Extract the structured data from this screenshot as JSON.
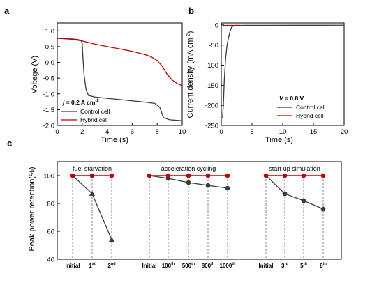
{
  "colors": {
    "control": "#3a3a3a",
    "hybrid": "#c00000",
    "axis": "#000000",
    "guide": "#666666"
  },
  "chart_data": [
    {
      "panel": "a",
      "type": "line",
      "xlabel": "Time (s)",
      "ylabel": "Voltege (V)",
      "xlim": [
        0,
        10
      ],
      "ylim": [
        -2.0,
        1.25
      ],
      "xticks": [
        0,
        2,
        4,
        6,
        8,
        10
      ],
      "yticks": [
        1.0,
        0.5,
        0.0,
        -0.5,
        -1.0,
        -1.5,
        -2.0
      ],
      "annotation": {
        "prefix": "j",
        "text": " = 0.2 A cm",
        "sup": "-2"
      },
      "series": [
        {
          "name": "Control cell",
          "color_key": "control",
          "x": [
            0,
            1.0,
            1.6,
            1.9,
            2.0,
            2.05,
            2.15,
            2.3,
            2.5,
            3.0,
            4.0,
            5.0,
            6.0,
            7.0,
            7.8,
            8.2,
            8.5,
            9.0,
            10.0
          ],
          "y": [
            0.76,
            0.75,
            0.73,
            0.7,
            0.6,
            0.2,
            -0.4,
            -0.85,
            -1.05,
            -1.1,
            -1.14,
            -1.18,
            -1.22,
            -1.26,
            -1.3,
            -1.42,
            -1.75,
            -1.82,
            -1.85
          ]
        },
        {
          "name": "Hybrid cell",
          "color_key": "hybrid",
          "x": [
            0,
            1.0,
            2.0,
            3.0,
            4.0,
            5.0,
            6.0,
            7.0,
            7.5,
            8.0,
            8.4,
            8.8,
            9.2,
            9.6,
            10.0
          ],
          "y": [
            0.76,
            0.74,
            0.68,
            0.58,
            0.5,
            0.43,
            0.35,
            0.25,
            0.18,
            0.06,
            -0.12,
            -0.38,
            -0.56,
            -0.67,
            -0.74
          ]
        }
      ]
    },
    {
      "panel": "b",
      "type": "line",
      "xlabel": "Time (s)",
      "ylabel": "Current density (mA cm",
      "ylabel_sup": "-2",
      "ylabel_close": ")",
      "xlim": [
        0,
        20
      ],
      "ylim": [
        -250,
        5
      ],
      "xticks": [
        0,
        5,
        10,
        15,
        20
      ],
      "yticks": [
        0,
        -50,
        -100,
        -150,
        -200,
        -250
      ],
      "annotation": {
        "prefix": "V",
        "text": " = 0.8 V"
      },
      "series": [
        {
          "name": "Control cell",
          "color_key": "control",
          "x": [
            0.2,
            0.35,
            0.5,
            0.7,
            0.9,
            1.0,
            1.2,
            1.5,
            1.7,
            2.0,
            2.5,
            3.0,
            4.0,
            8.0,
            12.0,
            16.0,
            20.0
          ],
          "y": [
            -232,
            -195,
            -135,
            -85,
            -55,
            -45,
            -30,
            -12,
            -5,
            -2.5,
            -1.5,
            -1.2,
            -1.0,
            -0.8,
            -0.7,
            -0.7,
            -0.6
          ]
        },
        {
          "name": "Hybrid cell",
          "color_key": "hybrid",
          "x": [
            0.2,
            0.5,
            1.0,
            2.0,
            3.0
          ],
          "y": [
            -1.5,
            -1.3,
            -1.2,
            -1.1,
            -1.0
          ]
        }
      ]
    },
    {
      "panel": "c",
      "type": "line",
      "ylabel": "Peak power retention(%)",
      "ylim": [
        40,
        110
      ],
      "yticks": [
        100,
        80,
        60,
        40
      ],
      "groups": [
        {
          "title": "fuel starvation",
          "categories": [
            {
              "base": "Initial",
              "sup": ""
            },
            {
              "base": "1",
              "sup": "st"
            },
            {
              "base": "2",
              "sup": "nd"
            }
          ],
          "hybrid": [
            100,
            100,
            100
          ],
          "control": [
            100,
            87,
            54
          ],
          "marker": "triangle"
        },
        {
          "title": "acceleration cycling",
          "categories": [
            {
              "base": "Initial",
              "sup": ""
            },
            {
              "base": "100",
              "sup": "th"
            },
            {
              "base": "500",
              "sup": "th"
            },
            {
              "base": "800",
              "sup": "th"
            },
            {
              "base": "1000",
              "sup": "th"
            }
          ],
          "hybrid": [
            100,
            100,
            100,
            100,
            100
          ],
          "control": [
            100,
            98,
            95,
            93,
            91
          ],
          "marker": "circle"
        },
        {
          "title": "start-up simulation",
          "categories": [
            {
              "base": "Initial",
              "sup": ""
            },
            {
              "base": "3",
              "sup": "rd"
            },
            {
              "base": "5",
              "sup": "th"
            },
            {
              "base": "8",
              "sup": "th"
            }
          ],
          "hybrid": [
            100,
            100,
            100,
            100
          ],
          "control": [
            100,
            87,
            82,
            76
          ],
          "marker": "pentagon"
        }
      ]
    }
  ],
  "panel_labels": [
    "a",
    "b",
    "c"
  ]
}
